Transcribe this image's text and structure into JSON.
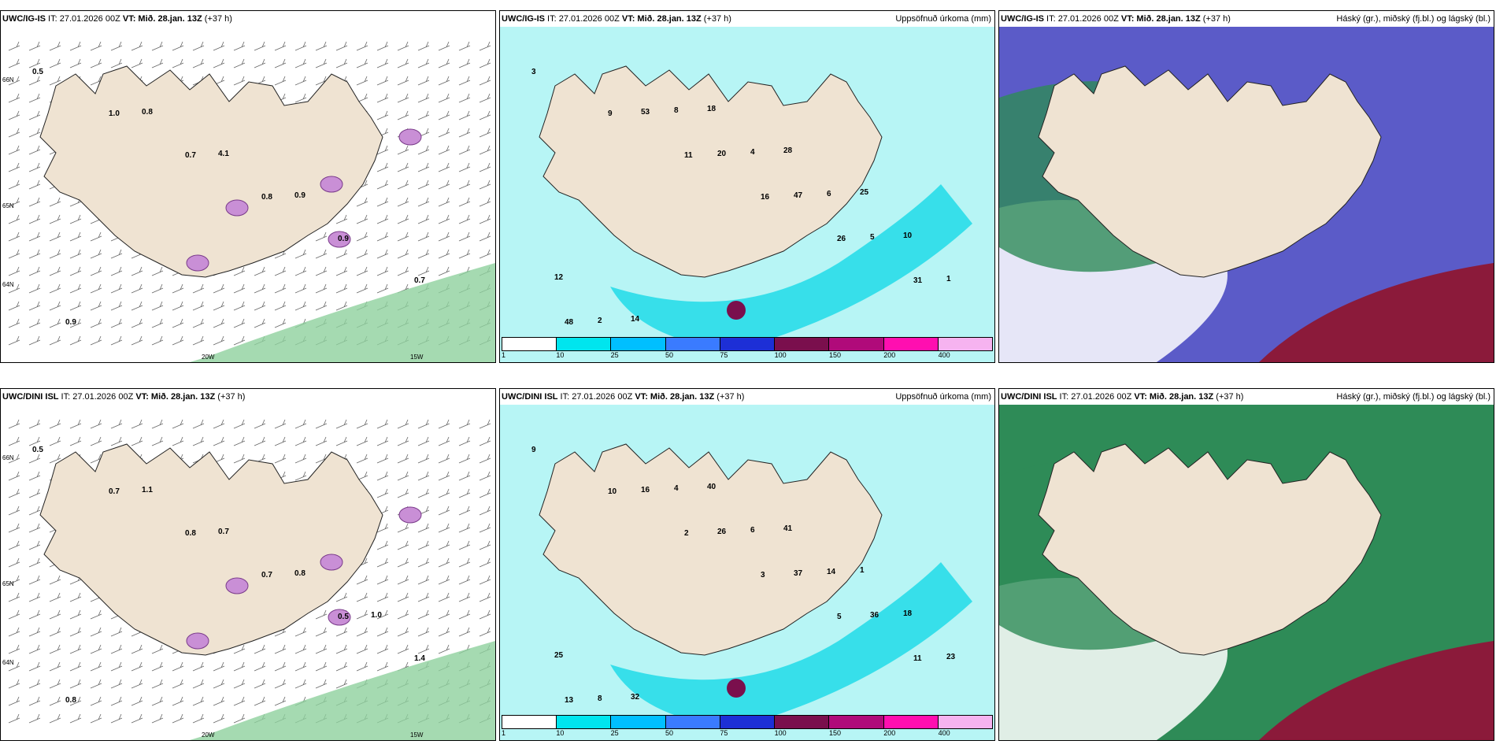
{
  "panels": [
    {
      "model": "UWC/IG-IS",
      "it": "IT: 27.01.2026 00Z",
      "vt": "VT: Mið. 28.jan. 13Z",
      "lead": "(+37 h)",
      "right": "",
      "type": "precip-wind",
      "labels": [
        "0.5",
        "1.0",
        "0.7",
        "0.8",
        "0.9",
        "0.7",
        "0.9",
        "0.8",
        "4.1",
        "0.9"
      ],
      "axes": [
        "66N",
        "65N",
        "64N",
        "20W",
        "15W"
      ]
    },
    {
      "model": "UWC/IG-IS",
      "it": "IT: 27.01.2026 00Z",
      "vt": "VT: Mið. 28.jan. 13Z",
      "lead": "(+37 h)",
      "right": "Uppsöfnuð úrkoma (mm)",
      "type": "accum",
      "labels": [
        "3",
        "9",
        "11",
        "16",
        "26",
        "31",
        "48",
        "53",
        "20",
        "47",
        "5",
        "1",
        "2",
        "8",
        "4",
        "6",
        "10",
        "12",
        "14",
        "18",
        "28",
        "25"
      ],
      "scale": [
        "1",
        "10",
        "25",
        "50",
        "75",
        "100",
        "150",
        "200",
        "400"
      ]
    },
    {
      "model": "UWC/IG-IS",
      "it": "IT: 27.01.2026 00Z",
      "vt": "VT: Mið. 28.jan. 13Z",
      "lead": "(+37 h)",
      "right": "Háský (gr.), miðský (fj.bl.) og lágský (bl.)",
      "type": "cloud"
    },
    {
      "model": "UWC/DINI ISL",
      "it": "IT: 27.01.2026 00Z",
      "vt": "VT: Mið. 28.jan. 13Z",
      "lead": "(+37 h)",
      "right": "",
      "type": "precip-wind",
      "labels": [
        "0.5",
        "0.7",
        "0.8",
        "0.7",
        "0.5",
        "1.4",
        "0.8",
        "1.1",
        "0.7",
        "0.8",
        "1.0"
      ],
      "axes": [
        "66N",
        "65N",
        "64N",
        "20W",
        "15W"
      ]
    },
    {
      "model": "UWC/DINI ISL",
      "it": "IT: 27.01.2026 00Z",
      "vt": "VT: Mið. 28.jan. 13Z",
      "lead": "(+37 h)",
      "right": "Uppsöfnuð úrkoma (mm)",
      "type": "accum",
      "labels": [
        "9",
        "10",
        "2",
        "3",
        "5",
        "11",
        "13",
        "16",
        "26",
        "37",
        "36",
        "23",
        "8",
        "4",
        "6",
        "14",
        "18",
        "25",
        "32",
        "40",
        "41",
        "1"
      ],
      "scale": [
        "1",
        "10",
        "25",
        "50",
        "75",
        "100",
        "150",
        "200",
        "400"
      ]
    },
    {
      "model": "UWC/DINI ISL",
      "it": "IT: 27.01.2026 00Z",
      "vt": "VT: Mið. 28.jan. 13Z",
      "lead": "(+37 h)",
      "right": "Háský (gr.), miðský (fj.bl.) og lágský (bl.)",
      "type": "cloud"
    }
  ],
  "colors": {
    "land": "#efe3d2",
    "sea": "#ffffff",
    "accum_bg": "#b7f5f5",
    "high": "#2e8b57",
    "mid": "#5b5bc8",
    "low": "#8b1a3a",
    "precip": "#c98fd6"
  },
  "scale_colors": [
    "#ffffff",
    "#00e5ee",
    "#00bfff",
    "#3a7bff",
    "#1d2fd6",
    "#7a0f4d",
    "#b00a7a",
    "#ff0fb0",
    "#f6b3f0"
  ]
}
